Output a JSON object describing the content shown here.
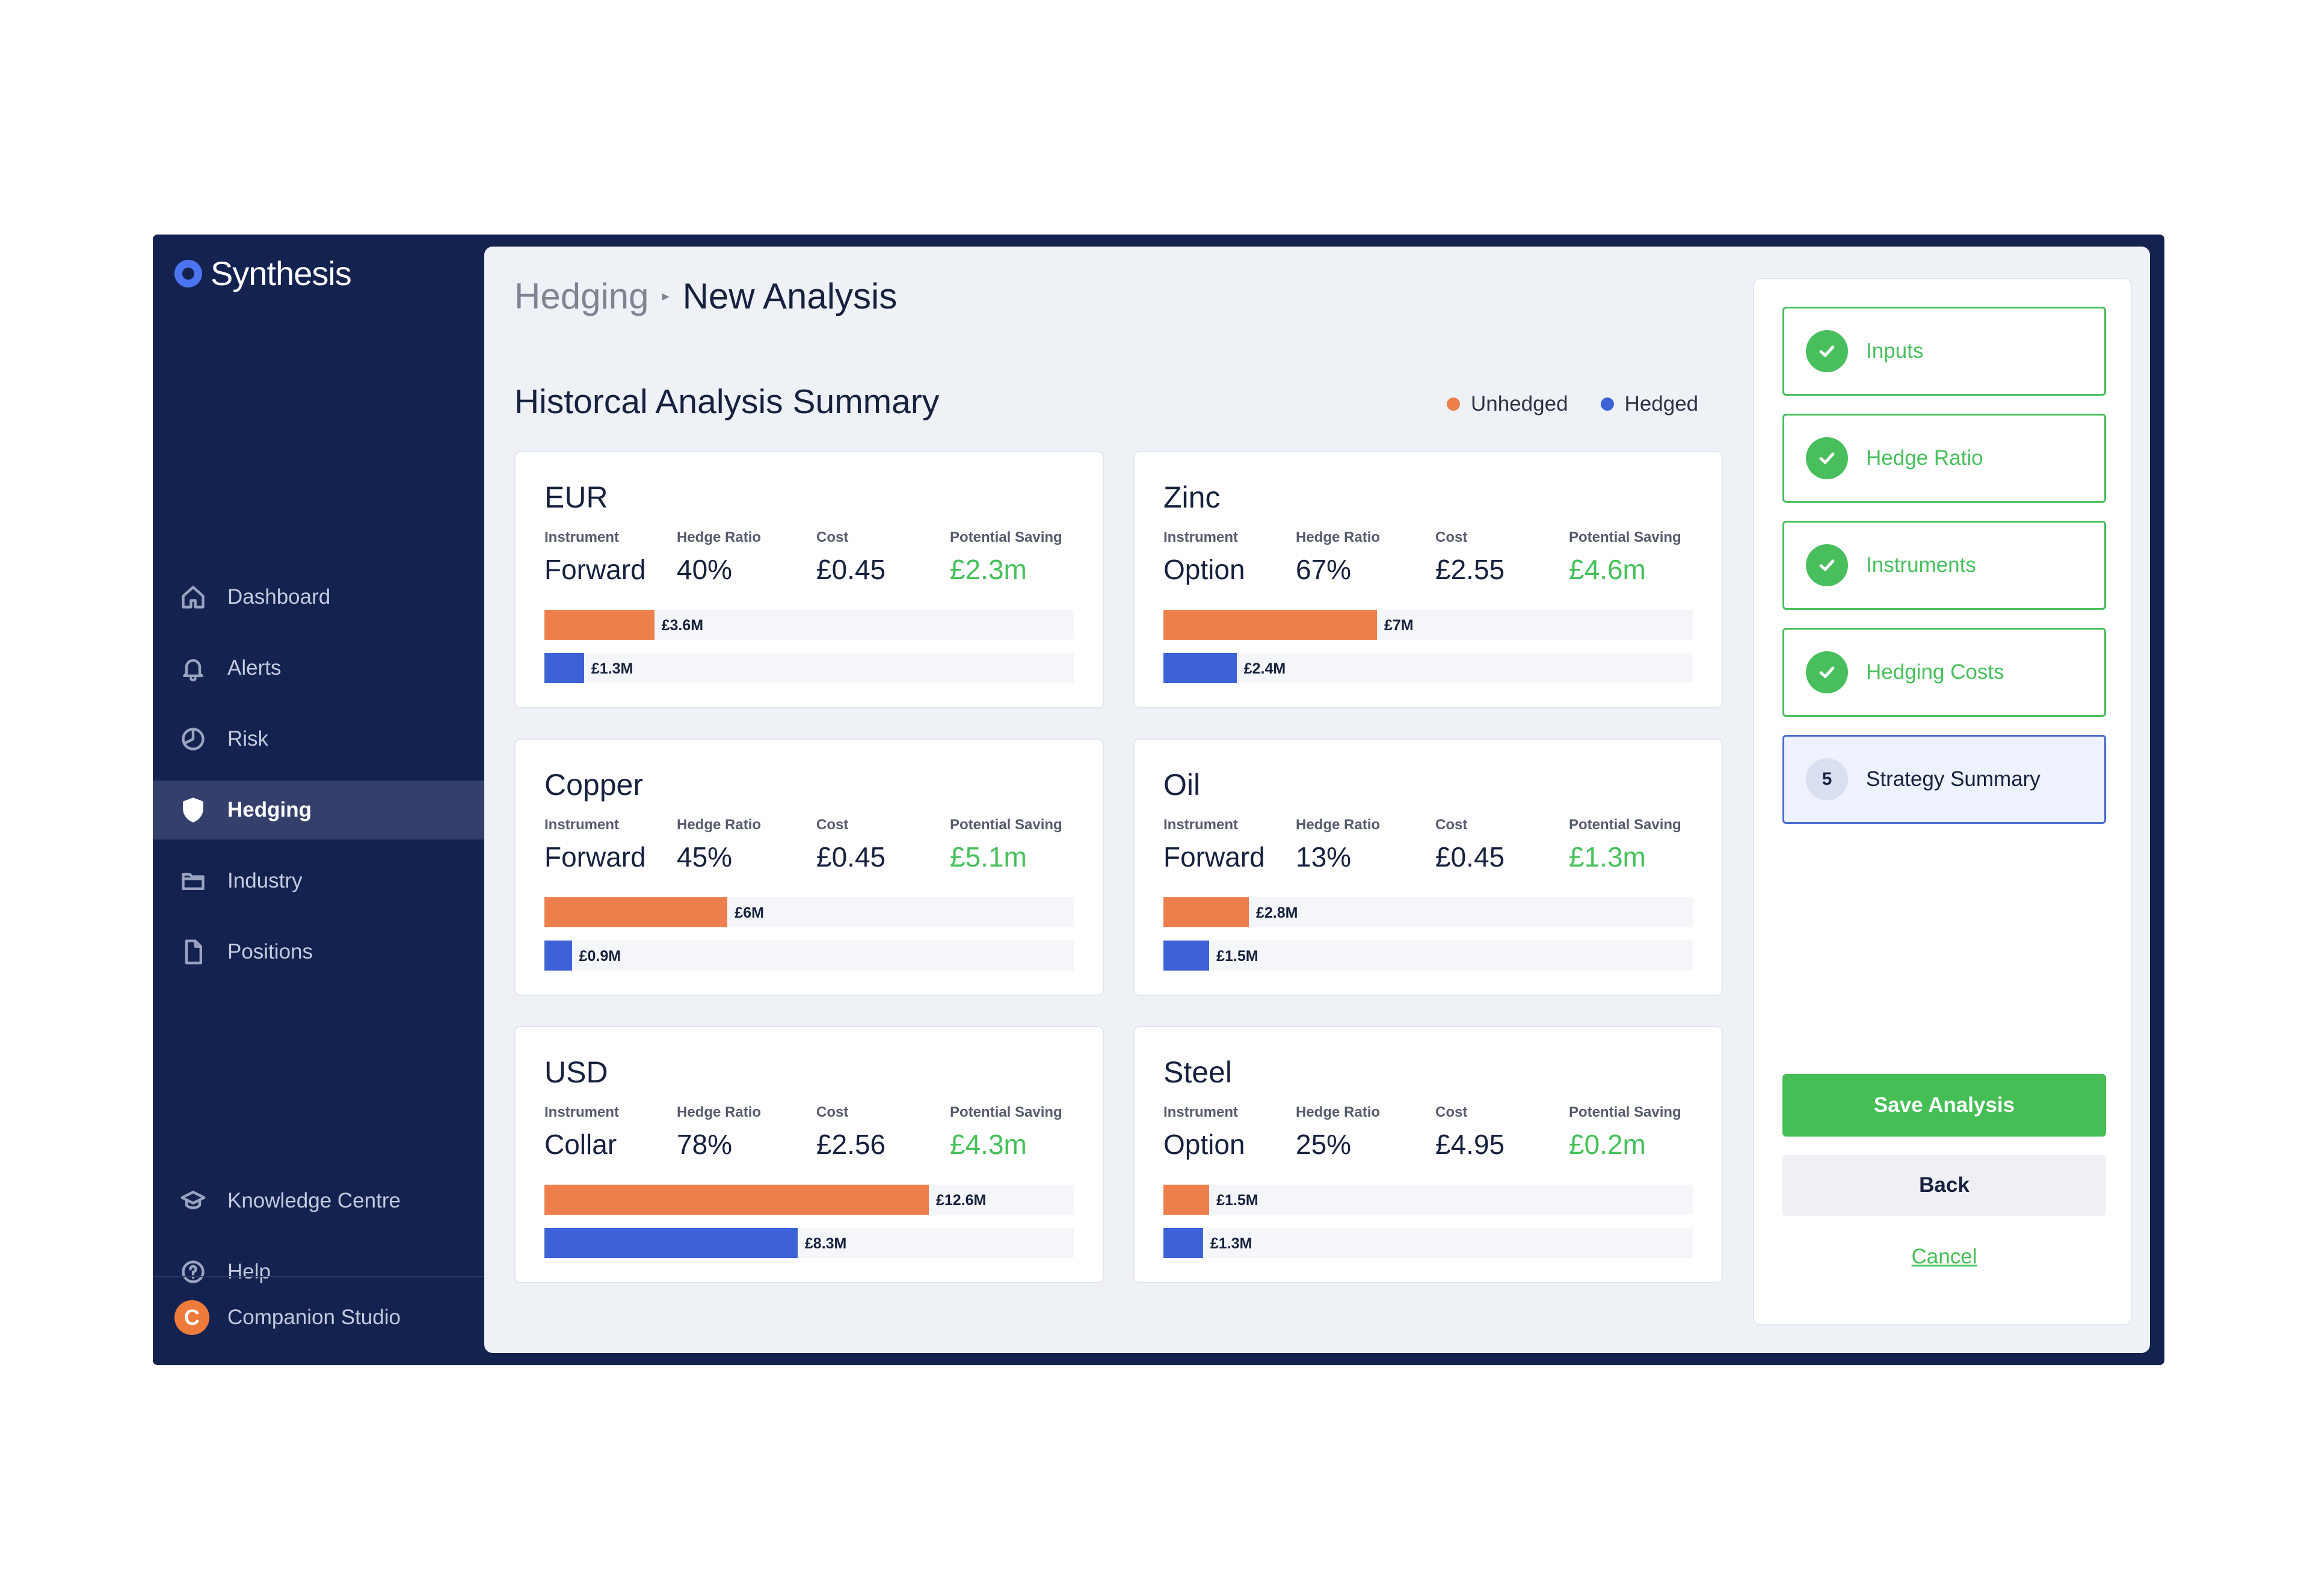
{
  "brand": {
    "name": "Synthesis"
  },
  "sidebar": {
    "items": [
      {
        "label": "Dashboard",
        "icon": "home-icon"
      },
      {
        "label": "Alerts",
        "icon": "bell-icon"
      },
      {
        "label": "Risk",
        "icon": "pie-chart-icon"
      },
      {
        "label": "Hedging",
        "icon": "shield-icon",
        "active": true
      },
      {
        "label": "Industry",
        "icon": "folder-icon"
      },
      {
        "label": "Positions",
        "icon": "document-icon"
      }
    ],
    "bottom_items": [
      {
        "label": "Knowledge Centre",
        "icon": "graduation-cap-icon"
      },
      {
        "label": "Help",
        "icon": "help-circle-icon"
      }
    ],
    "workspace": {
      "label": "Companion Studio",
      "badge": "C"
    }
  },
  "breadcrumb": {
    "parent": "Hedging",
    "current": "New Analysis"
  },
  "section_title": "Historcal Analysis Summary",
  "legend": [
    {
      "label": "Unhedged",
      "color": "#ec7f4c"
    },
    {
      "label": "Hedged",
      "color": "#3d62d6"
    }
  ],
  "metric_labels": {
    "instrument": "Instrument",
    "hedge_ratio": "Hedge Ratio",
    "cost": "Cost",
    "saving": "Potential Saving"
  },
  "colors": {
    "unhedged": "#ec7f4c",
    "hedged": "#3d62d6",
    "success": "#46c05a",
    "sidebar": "#13224f"
  },
  "cards": [
    {
      "name": "EUR",
      "instrument": "Forward",
      "hedge_ratio": "40%",
      "cost": "£0.45",
      "saving": "£2.3m",
      "unhedged_label": "£3.6M",
      "hedged_label": "£1.3M"
    },
    {
      "name": "Zinc",
      "instrument": "Option",
      "hedge_ratio": "67%",
      "cost": "£2.55",
      "saving": "£4.6m",
      "unhedged_label": "£7M",
      "hedged_label": "£2.4M"
    },
    {
      "name": "Copper",
      "instrument": "Forward",
      "hedge_ratio": "45%",
      "cost": "£0.45",
      "saving": "£5.1m",
      "unhedged_label": "£6M",
      "hedged_label": "£0.9M"
    },
    {
      "name": "Oil",
      "instrument": "Forward",
      "hedge_ratio": "13%",
      "cost": "£0.45",
      "saving": "£1.3m",
      "unhedged_label": "£2.8M",
      "hedged_label": "£1.5M"
    },
    {
      "name": "USD",
      "instrument": "Collar",
      "hedge_ratio": "78%",
      "cost": "£2.56",
      "saving": "£4.3m",
      "unhedged_label": "£12.6M",
      "hedged_label": "£8.3M"
    },
    {
      "name": "Steel",
      "instrument": "Option",
      "hedge_ratio": "25%",
      "cost": "£4.95",
      "saving": "£0.2m",
      "unhedged_label": "£1.5M",
      "hedged_label": "£1.3M"
    }
  ],
  "chart_data": [
    {
      "type": "bar",
      "categories": [
        "Unhedged",
        "Hedged"
      ],
      "values": [
        3.6,
        1.3
      ]
    },
    {
      "type": "bar",
      "categories": [
        "Unhedged",
        "Hedged"
      ],
      "values": [
        7,
        2.4
      ]
    },
    {
      "type": "bar",
      "categories": [
        "Unhedged",
        "Hedged"
      ],
      "values": [
        6,
        0.9
      ]
    },
    {
      "type": "bar",
      "categories": [
        "Unhedged",
        "Hedged"
      ],
      "values": [
        2.8,
        1.5
      ]
    },
    {
      "type": "bar",
      "categories": [
        "Unhedged",
        "Hedged"
      ],
      "values": [
        12.6,
        8.3
      ]
    },
    {
      "type": "bar",
      "categories": [
        "Unhedged",
        "Hedged"
      ],
      "values": [
        1.5,
        1.3
      ]
    }
  ],
  "steps": [
    {
      "label": "Inputs",
      "status": "complete"
    },
    {
      "label": "Hedge Ratio",
      "status": "complete"
    },
    {
      "label": "Instruments",
      "status": "complete"
    },
    {
      "label": "Hedging Costs",
      "status": "complete"
    },
    {
      "label": "Strategy Summary",
      "status": "current",
      "number": "5"
    }
  ],
  "actions": {
    "save": "Save Analysis",
    "back": "Back",
    "cancel": "Cancel"
  }
}
